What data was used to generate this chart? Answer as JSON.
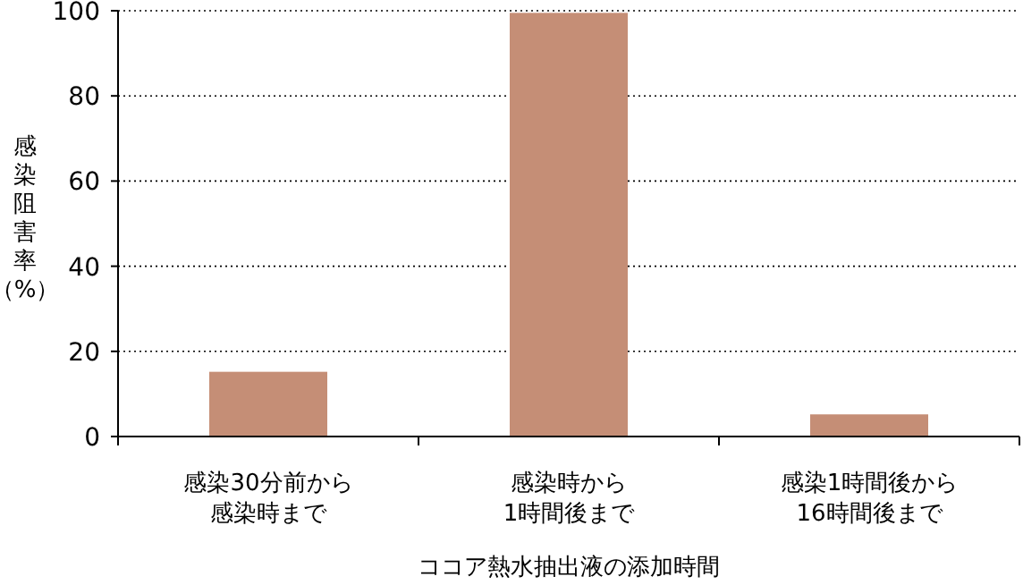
{
  "chart_data": {
    "type": "bar",
    "xlabel": "ココア熱水抽出液の添加時間",
    "ylabel": "感染阻害率（%）",
    "categories": [
      "感染30分前から感染時まで",
      "感染時から1時間後まで",
      "感染1時間後から16時間後まで"
    ],
    "values": [
      15.2,
      99.5,
      5.2
    ],
    "color": "#c58e76",
    "ylim": [
      0,
      100
    ],
    "yticks": [
      0,
      20,
      40,
      60,
      80,
      100
    ],
    "grid": "y"
  }
}
